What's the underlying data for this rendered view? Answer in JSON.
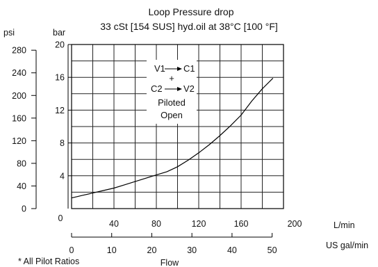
{
  "chart_data": {
    "type": "line",
    "title": "Loop Pressure drop",
    "subtitle": "33 cSt [154 SUS] hyd.oil at 38°C [100 °F]",
    "xlabel": "Flow",
    "x_unit_primary": "L/min",
    "x_unit_secondary": "US gal/min",
    "y_unit_primary": "bar",
    "y_unit_secondary": "psi",
    "xlim": [
      0,
      200
    ],
    "ylim": [
      0,
      20
    ],
    "x_ticks_lpm": [
      0,
      40,
      80,
      120,
      160,
      200
    ],
    "x_ticks_gpm": [
      0,
      10,
      20,
      30,
      40,
      50
    ],
    "y_ticks_bar": [
      4,
      8,
      12,
      16,
      20
    ],
    "y_ticks_psi": [
      0,
      40,
      80,
      120,
      160,
      200,
      240,
      280
    ],
    "grid": true,
    "series": [
      {
        "x": [
          0,
          10,
          20,
          30,
          40,
          50,
          60,
          70,
          80,
          90,
          100,
          110,
          120,
          130,
          140,
          150,
          160,
          170,
          180,
          190
        ],
        "y": [
          1.3,
          1.6,
          1.9,
          2.2,
          2.5,
          2.9,
          3.3,
          3.7,
          4.1,
          4.5,
          5.1,
          5.9,
          6.8,
          7.8,
          8.9,
          10.1,
          11.4,
          13.1,
          14.6,
          15.9
        ]
      }
    ],
    "annotation": [
      "V1",
      "C1",
      "+",
      "C2",
      "V2",
      "Piloted",
      "Open"
    ],
    "footnote": "* All Pilot Ratios"
  }
}
